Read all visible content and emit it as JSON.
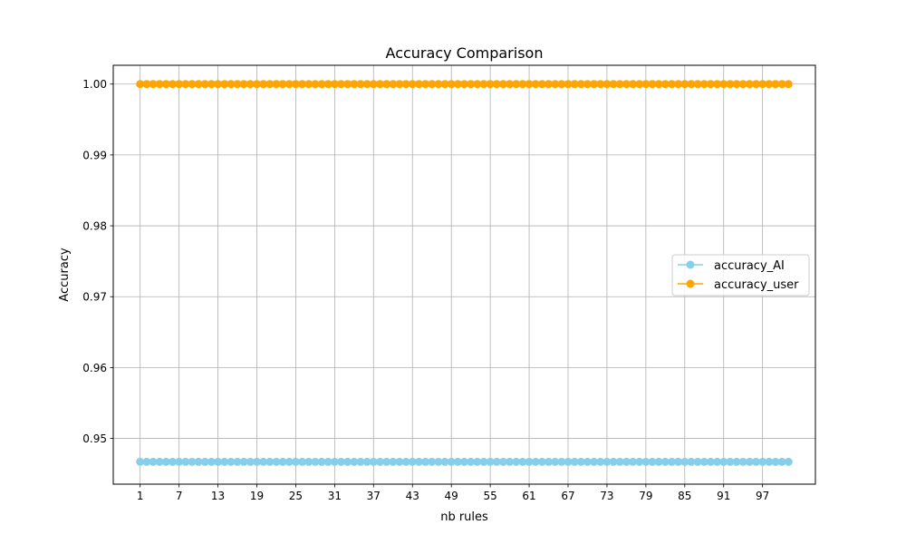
{
  "chart_data": {
    "type": "line",
    "title": "Accuracy Comparison",
    "xlabel": "nb rules",
    "ylabel": "Accuracy",
    "x": [
      1,
      2,
      3,
      4,
      5,
      6,
      7,
      8,
      9,
      10,
      11,
      12,
      13,
      14,
      15,
      16,
      17,
      18,
      19,
      20,
      21,
      22,
      23,
      24,
      25,
      26,
      27,
      28,
      29,
      30,
      31,
      32,
      33,
      34,
      35,
      36,
      37,
      38,
      39,
      40,
      41,
      42,
      43,
      44,
      45,
      46,
      47,
      48,
      49,
      50,
      51,
      52,
      53,
      54,
      55,
      56,
      57,
      58,
      59,
      60,
      61,
      62,
      63,
      64,
      65,
      66,
      67,
      68,
      69,
      70,
      71,
      72,
      73,
      74,
      75,
      76,
      77,
      78,
      79,
      80,
      81,
      82,
      83,
      84,
      85,
      86,
      87,
      88,
      89,
      90,
      91,
      92,
      93,
      94,
      95,
      96,
      97,
      98,
      99,
      100,
      101
    ],
    "xticks": [
      1,
      7,
      13,
      19,
      25,
      31,
      37,
      43,
      49,
      55,
      61,
      67,
      73,
      79,
      85,
      91,
      97
    ],
    "xlim": [
      -3.15,
      105.15
    ],
    "ylim": [
      0.94355,
      1.00265
    ],
    "yticks": [
      0.95,
      0.96,
      0.97,
      0.98,
      0.99,
      1.0
    ],
    "ytick_labels": [
      "0.95",
      "0.96",
      "0.97",
      "0.98",
      "0.99",
      "1.00"
    ],
    "grid": true,
    "legend_position": "center-right",
    "series": [
      {
        "name": "accuracy_AI",
        "color": "#87ceeb",
        "marker": "circle",
        "constant_value": 0.9467
      },
      {
        "name": "accuracy_user",
        "color": "#ffa500",
        "marker": "circle",
        "constant_value": 1.0
      }
    ]
  }
}
